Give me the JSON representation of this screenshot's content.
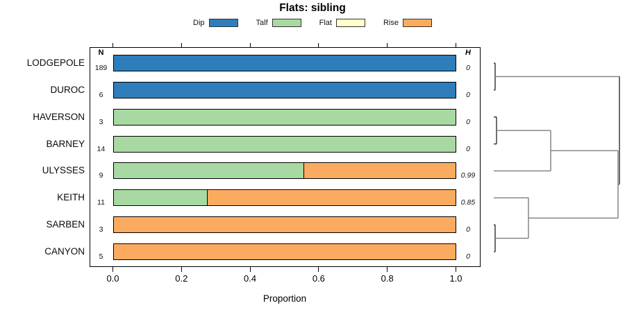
{
  "chart_data": {
    "type": "bar",
    "orientation": "horizontal-stacked",
    "title": "Flats: sibling",
    "xlabel": "Proportion",
    "xlim": [
      0,
      1
    ],
    "xticks": [
      0.0,
      0.2,
      0.4,
      0.6,
      0.8,
      1.0
    ],
    "xtick_labels": [
      "0.0",
      "0.2",
      "0.4",
      "0.6",
      "0.8",
      "1.0"
    ],
    "grid": false,
    "legend_position": "top",
    "legend": [
      {
        "label": "Dip",
        "color": "#2E7EBB"
      },
      {
        "label": "Talf",
        "color": "#A8D9A2"
      },
      {
        "label": "Flat",
        "color": "#FFFFCC"
      },
      {
        "label": "Rise",
        "color": "#FBAB60"
      }
    ],
    "columns": {
      "n_header": "N",
      "h_header": "H"
    },
    "rows": [
      {
        "label": "LODGEPOLE",
        "n": "189",
        "h": "0",
        "segments": [
          {
            "cat": "Dip",
            "value": 1.0
          }
        ]
      },
      {
        "label": "DUROC",
        "n": "6",
        "h": "0",
        "segments": [
          {
            "cat": "Dip",
            "value": 1.0
          }
        ]
      },
      {
        "label": "HAVERSON",
        "n": "3",
        "h": "0",
        "segments": [
          {
            "cat": "Talf",
            "value": 1.0
          }
        ]
      },
      {
        "label": "BARNEY",
        "n": "14",
        "h": "0",
        "segments": [
          {
            "cat": "Talf",
            "value": 1.0
          }
        ]
      },
      {
        "label": "ULYSSES",
        "n": "9",
        "h": "0.99",
        "segments": [
          {
            "cat": "Talf",
            "value": 0.556
          },
          {
            "cat": "Rise",
            "value": 0.444
          }
        ]
      },
      {
        "label": "KEITH",
        "n": "11",
        "h": "0.85",
        "segments": [
          {
            "cat": "Talf",
            "value": 0.273
          },
          {
            "cat": "Rise",
            "value": 0.727
          }
        ]
      },
      {
        "label": "SARBEN",
        "n": "3",
        "h": "0",
        "segments": [
          {
            "cat": "Rise",
            "value": 1.0
          }
        ]
      },
      {
        "label": "CANYON",
        "n": "5",
        "h": "0",
        "segments": [
          {
            "cat": "Rise",
            "value": 1.0
          }
        ]
      }
    ],
    "dendrogram": {
      "side": "right",
      "heights_relative_to_max": true,
      "tree": {
        "h": 1.0,
        "children": [
          {
            "h": 0.011,
            "children": [
              "LODGEPOLE",
              "DUROC"
            ]
          },
          {
            "h": 0.989,
            "children": [
              {
                "h": 0.453,
                "children": [
                  {
                    "h": 0.022,
                    "children": [
                      "HAVERSON",
                      "BARNEY"
                    ]
                  },
                  "ULYSSES"
                ]
              },
              {
                "h": 0.276,
                "children": [
                  "KEITH",
                  {
                    "h": 0.011,
                    "children": [
                      "SARBEN",
                      "CANYON"
                    ]
                  }
                ]
              }
            ]
          }
        ]
      }
    }
  }
}
